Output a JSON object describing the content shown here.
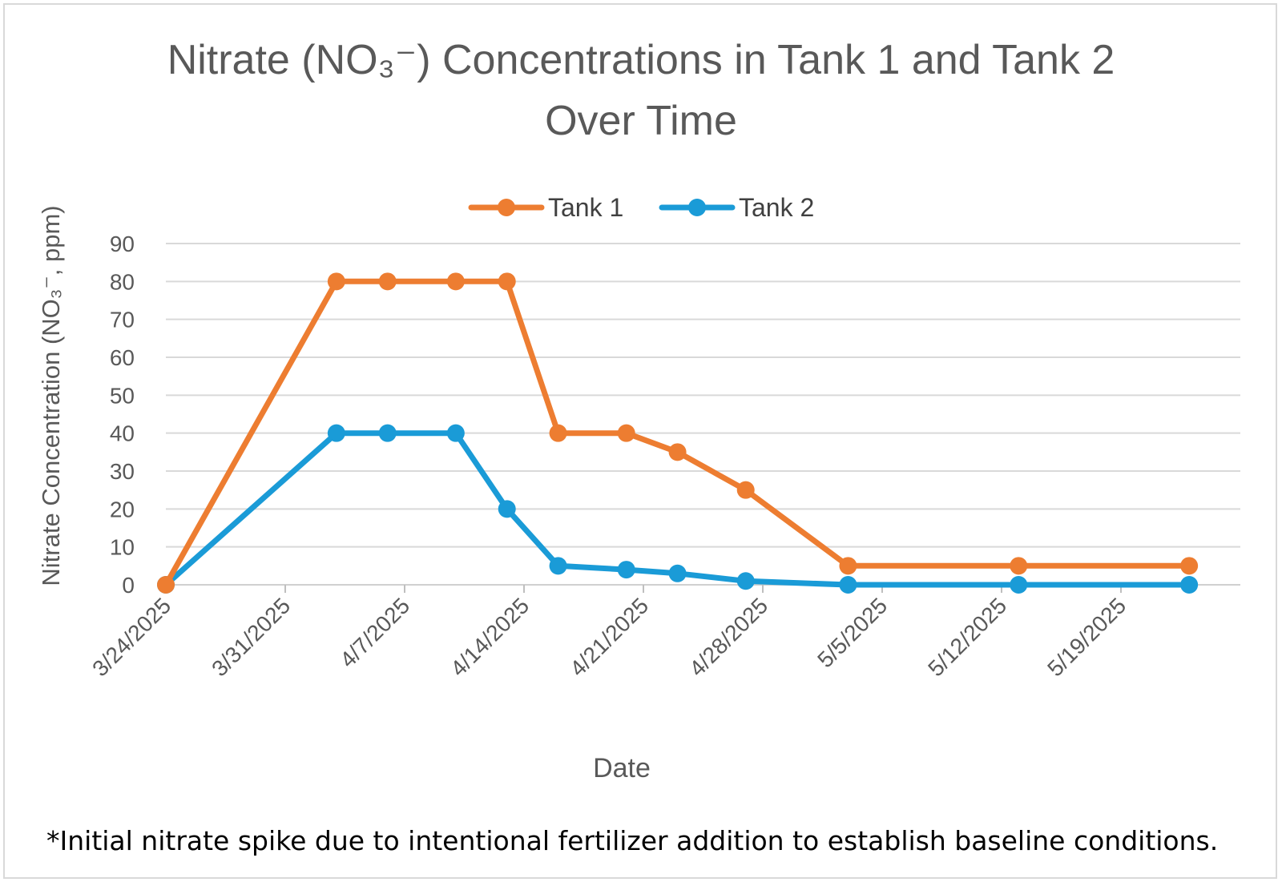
{
  "chart_data": {
    "type": "line",
    "title_line1": "Nitrate (NO₃⁻) Concentrations in Tank 1 and Tank 2",
    "title_line2": "Over Time",
    "xlabel": "Date",
    "ylabel": "Nitrate Concentration (NO₃⁻, ppm)",
    "ylim": [
      0,
      90
    ],
    "yticks": [
      0,
      10,
      20,
      30,
      40,
      50,
      60,
      70,
      80,
      90
    ],
    "x_start": "2025-03-24",
    "x_end": "2025-05-26",
    "xtick_labels": [
      "3/24/2025",
      "3/31/2025",
      "4/7/2025",
      "4/14/2025",
      "4/21/2025",
      "4/28/2025",
      "5/5/2025",
      "5/12/2025",
      "5/19/2025"
    ],
    "xtick_days": [
      0,
      7,
      14,
      21,
      28,
      35,
      42,
      49,
      56
    ],
    "legend_position": "top-center",
    "grid": true,
    "series": [
      {
        "name": "Tank 1",
        "color": "#ED7D31",
        "points": [
          {
            "day": 0,
            "value": 0
          },
          {
            "day": 10,
            "value": 80
          },
          {
            "day": 13,
            "value": 80
          },
          {
            "day": 17,
            "value": 80
          },
          {
            "day": 20,
            "value": 80
          },
          {
            "day": 23,
            "value": 40
          },
          {
            "day": 27,
            "value": 40
          },
          {
            "day": 30,
            "value": 35
          },
          {
            "day": 34,
            "value": 25
          },
          {
            "day": 40,
            "value": 5
          },
          {
            "day": 50,
            "value": 5
          },
          {
            "day": 60,
            "value": 5
          }
        ]
      },
      {
        "name": "Tank 2",
        "color": "#1A9BD7",
        "points": [
          {
            "day": 0,
            "value": 0
          },
          {
            "day": 10,
            "value": 40
          },
          {
            "day": 13,
            "value": 40
          },
          {
            "day": 17,
            "value": 40
          },
          {
            "day": 20,
            "value": 20
          },
          {
            "day": 23,
            "value": 5
          },
          {
            "day": 27,
            "value": 4
          },
          {
            "day": 30,
            "value": 3
          },
          {
            "day": 34,
            "value": 1
          },
          {
            "day": 40,
            "value": 0
          },
          {
            "day": 50,
            "value": 0
          },
          {
            "day": 60,
            "value": 0
          }
        ]
      }
    ],
    "footnote": "*Initial nitrate spike due to intentional fertilizer addition to establish baseline conditions."
  }
}
